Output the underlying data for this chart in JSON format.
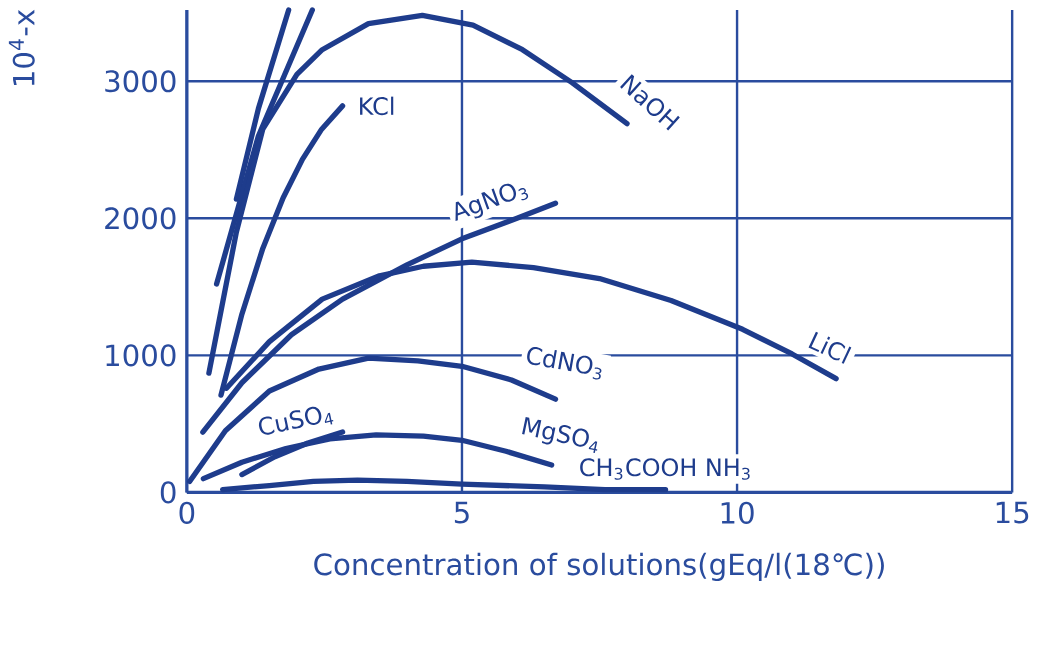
{
  "chart_data": {
    "type": "line",
    "xlabel": "Concentration of solutions(gEq/l(18℃))",
    "ylabel": "10$^{4}$-x",
    "xlim": [
      0,
      15
    ],
    "ylim": [
      0,
      3520
    ],
    "xticks": [
      0,
      5,
      10,
      15
    ],
    "yticks": [
      0,
      1000,
      2000,
      3000
    ],
    "grid": true,
    "marker": "none",
    "line_style": "solid",
    "series": [
      {
        "color": "#1e3c8c",
        "x": [
          0.9,
          1.3,
          1.85
        ],
        "values": [
          2140,
          2800,
          3520
        ]
      },
      {
        "color": "#1e3c8c",
        "x": [
          0.54,
          1.3,
          2.28
        ],
        "values": [
          1520,
          2600,
          3520
        ]
      },
      {
        "name": "NaOH",
        "color": "#1e3c8c",
        "x": [
          0.4,
          0.9,
          1.38,
          2.0,
          2.46,
          3.3,
          4.28,
          5.2,
          6.1,
          7.0,
          8.0
        ],
        "values": [
          870,
          1900,
          2650,
          3050,
          3230,
          3420,
          3480,
          3410,
          3230,
          2990,
          2690
        ]
      },
      {
        "name": "KCl",
        "color": "#1e3c8c",
        "x": [
          0.62,
          1.0,
          1.38,
          1.75,
          2.1,
          2.45,
          2.83
        ],
        "values": [
          710,
          1300,
          1780,
          2150,
          2430,
          2650,
          2820
        ]
      },
      {
        "name": "AgNO$_{3}$",
        "color": "#1e3c8c",
        "x": [
          0.29,
          1.0,
          1.9,
          2.83,
          4.0,
          5.0,
          6.0,
          6.7
        ],
        "values": [
          440,
          800,
          1150,
          1410,
          1660,
          1850,
          2000,
          2110
        ]
      },
      {
        "name": "LiCl",
        "color": "#1e3c8c",
        "x": [
          0.72,
          1.5,
          2.46,
          3.5,
          4.3,
          5.18,
          6.3,
          7.5,
          8.8,
          10.1,
          11.0,
          11.8
        ],
        "values": [
          760,
          1100,
          1410,
          1580,
          1650,
          1680,
          1640,
          1560,
          1400,
          1190,
          1010,
          830
        ]
      },
      {
        "name": "CdNO$_{3}$",
        "color": "#1e3c8c",
        "x": [
          0.05,
          0.7,
          1.5,
          2.4,
          3.3,
          4.2,
          5.0,
          5.9,
          6.7
        ],
        "values": [
          80,
          450,
          740,
          900,
          980,
          960,
          920,
          820,
          680
        ]
      },
      {
        "name": "CuSO$_{4}$",
        "color": "#1e3c8c",
        "x": [
          1.0,
          1.6,
          2.2,
          2.83
        ],
        "values": [
          130,
          260,
          360,
          440
        ]
      },
      {
        "name": "MgSO$_{4}$",
        "color": "#1e3c8c",
        "x": [
          0.3,
          1.0,
          1.8,
          2.6,
          3.44,
          4.3,
          5.0,
          5.8,
          6.63
        ],
        "values": [
          100,
          220,
          320,
          390,
          420,
          410,
          380,
          300,
          200
        ]
      },
      {
        "name": "CH$_{3}$COOH NH$_{3}$",
        "color": "#1e3c8c",
        "x": [
          0.65,
          1.5,
          2.3,
          3.1,
          4.0,
          5.0,
          6.5,
          7.6,
          8.7
        ],
        "values": [
          20,
          50,
          80,
          90,
          80,
          60,
          40,
          20,
          20
        ]
      }
    ]
  }
}
